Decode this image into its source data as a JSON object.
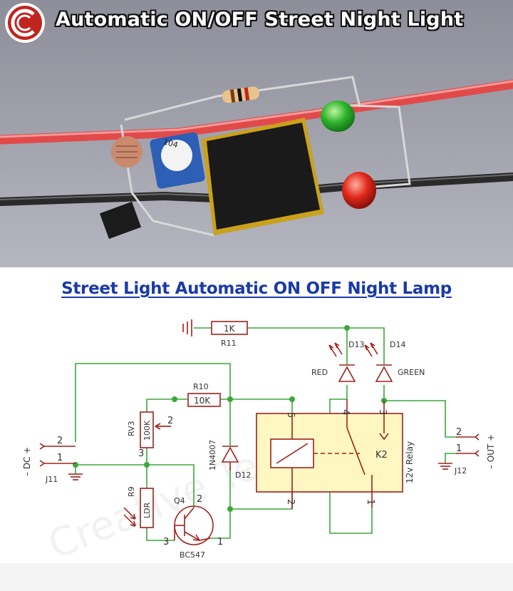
{
  "header": {
    "title": "Automatic ON/OFF Street Night Light"
  },
  "schematic": {
    "title": "Street Light Automatic ON OFF Night Lamp",
    "watermark": "Creative Technos",
    "components": {
      "r11": {
        "value": "1K",
        "ref": "R11"
      },
      "r10": {
        "value": "10K",
        "ref": "R10"
      },
      "rv3": {
        "value": "100K",
        "ref": "RV3",
        "pin2": "2",
        "pin3": "3"
      },
      "r9": {
        "value": "LDR",
        "ref": "R9"
      },
      "q4": {
        "ref": "Q4",
        "part": "BC547",
        "pin1": "1",
        "pin2": "2",
        "pin3": "3"
      },
      "d12": {
        "ref": "D12",
        "part": "1N4007"
      },
      "d13": {
        "ref": "D13",
        "color": "RED"
      },
      "d14": {
        "ref": "D14",
        "color": "GREEN"
      },
      "k2": {
        "ref": "K2",
        "part": "12v Relay",
        "pin1": "1",
        "pin2": "2",
        "pin3": "3",
        "pin4": "4",
        "pin5": "5"
      },
      "j11": {
        "ref": "J11",
        "label": "– DC +",
        "pin1": "1",
        "pin2": "2"
      },
      "j12": {
        "ref": "J12",
        "label": "– OUT +",
        "pin1": "1",
        "pin2": "2"
      }
    }
  },
  "colors": {
    "wire": "#3aa83a",
    "component": "#a0201c",
    "relay_fill": "#fff7c2",
    "title_blue": "#1a3aa8"
  }
}
